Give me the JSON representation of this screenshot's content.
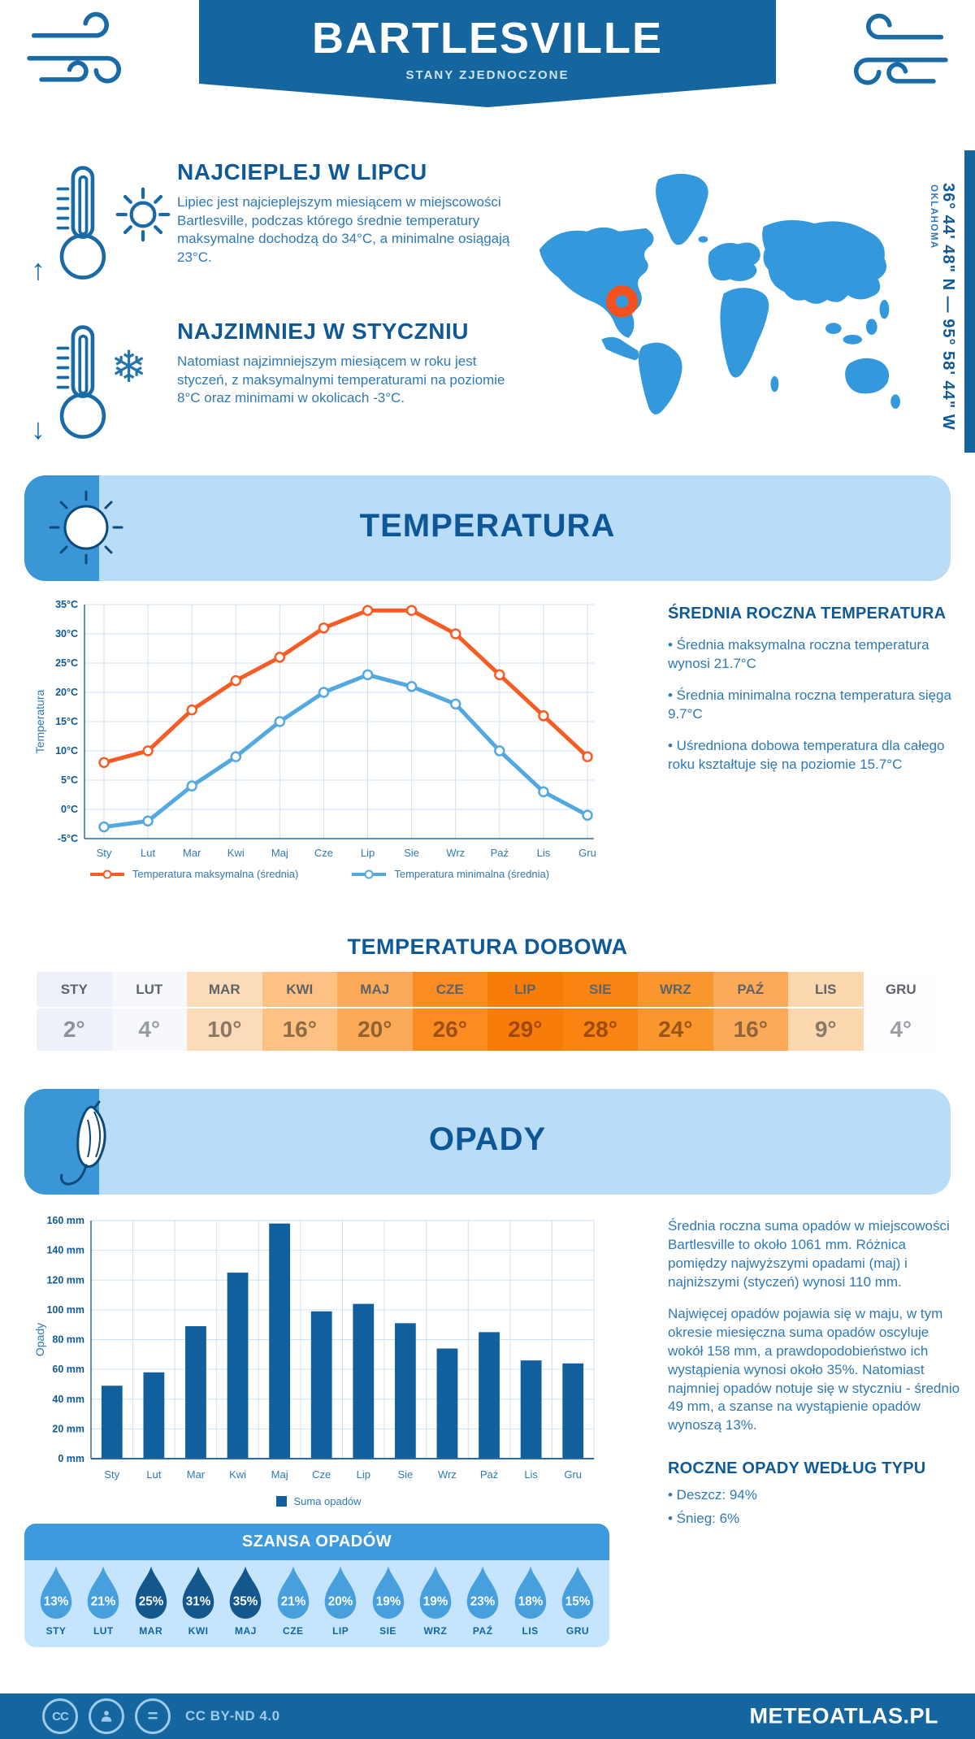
{
  "colors": {
    "header_blue": "#15659f",
    "band_bg": "#b9dcf9",
    "band_accent": "#3b96d7",
    "heading_blue": "#0f5a96",
    "text_blue": "#2e79b5",
    "map_blue": "#3498dc",
    "marker_orange": "#f4511e",
    "bar_blue": "#11609d",
    "droplet_light": "#47a0dd",
    "droplet_dark": "#14578c"
  },
  "header": {
    "title": "BARTLESVILLE",
    "subtitle": "STANY ZJEDNOCZONE"
  },
  "location": {
    "coordinates": "36° 44' 48\" N — 95° 58' 44\" W",
    "region": "OKLAHOMA"
  },
  "highlights": [
    {
      "title": "NAJCIEPLEJ W LIPCU",
      "text": "Lipiec jest najcieplejszym miesiącem w miejscowości Bartlesville, podczas którego średnie temperatury maksymalne dochodzą do 34°C, a minimalne osiągają 23°C."
    },
    {
      "title": "NAJZIMNIEJ W STYCZNIU",
      "text": "Natomiast najzimniejszym miesiącem w roku jest styczeń, z maksymalnymi temperaturami na poziomie 8°C oraz minimami w okolicach -3°C."
    }
  ],
  "temperature_section": {
    "title": "TEMPERATURA",
    "summary_title": "ŚREDNIA ROCZNA TEMPERATURA",
    "summary_points": [
      "• Średnia maksymalna roczna temperatura wynosi 21.7°C",
      "• Średnia minimalna roczna temperatura sięga 9.7°C",
      "• Uśredniona dobowa temperatura dla całego roku kształtuje się na poziomie 15.7°C"
    ],
    "daily_title": "TEMPERATURA DOBOWA",
    "table": {
      "months": [
        "STY",
        "LUT",
        "MAR",
        "KWI",
        "MAJ",
        "CZE",
        "LIP",
        "SIE",
        "WRZ",
        "PAŹ",
        "LIS",
        "GRU"
      ],
      "values": [
        "2°",
        "4°",
        "10°",
        "16°",
        "20°",
        "26°",
        "29°",
        "28°",
        "24°",
        "16°",
        "9°",
        "4°"
      ],
      "bg": [
        "#eef0fa",
        "#f7f8fc",
        "#fcdcb8",
        "#fdc183",
        "#fca958",
        "#fc8c22",
        "#f87d08",
        "#f98411",
        "#fa962e",
        "#fca958",
        "#fbd8b0",
        "#fefeff"
      ],
      "fg": [
        "#8e9199",
        "#989ba1",
        "#8d7863",
        "#8f6c46",
        "#936230",
        "#9d5011",
        "#a24806",
        "#a14a08",
        "#9b5513",
        "#90653b",
        "#8b7b67",
        "#9b9ea4"
      ]
    }
  },
  "precipitation_section": {
    "title": "OPADY",
    "paragraphs": [
      "Średnia roczna suma opadów w miejscowości Bartlesville to około 1061 mm. Różnica pomiędzy najwyższymi opadami (maj) i najniższymi (styczeń) wynosi 110 mm.",
      "Najwięcej opadów pojawia się w maju, w tym okresie miesięczna suma opadów oscyluje wokół 158 mm, a prawdopodobieństwo ich wystąpienia wynosi około 35%. Natomiast najmniej opadów notuje się w styczniu - średnio 49 mm, a szanse na wystąpienie opadów wynoszą 13%."
    ],
    "type_title": "ROCZNE OPADY WEDŁUG TYPU",
    "type_points": [
      "• Deszcz: 94%",
      "• Śnieg: 6%"
    ],
    "legend_label": "Suma opadów",
    "chance": {
      "title": "SZANSA OPADÓW",
      "months": [
        "STY",
        "LUT",
        "MAR",
        "KWI",
        "MAJ",
        "CZE",
        "LIP",
        "SIE",
        "WRZ",
        "PAŹ",
        "LIS",
        "GRU"
      ],
      "values": [
        "13%",
        "21%",
        "25%",
        "31%",
        "35%",
        "21%",
        "20%",
        "19%",
        "19%",
        "23%",
        "18%",
        "15%"
      ],
      "dark": [
        false,
        false,
        true,
        true,
        true,
        false,
        false,
        false,
        false,
        false,
        false,
        false
      ]
    }
  },
  "footer": {
    "license": "CC BY-ND 4.0",
    "brand": "METEOATLAS.PL"
  },
  "chart_data": [
    {
      "type": "line",
      "title": "Temperatura (średnie miesięczne)",
      "categories": [
        "Sty",
        "Lut",
        "Mar",
        "Kwi",
        "Maj",
        "Cze",
        "Lip",
        "Sie",
        "Wrz",
        "Paź",
        "Lis",
        "Gru"
      ],
      "series": [
        {
          "name": "Temperatura maksymalna (średnia)",
          "color": "#f85c25",
          "values": [
            8,
            10,
            17,
            22,
            26,
            31,
            34,
            34,
            30,
            23,
            16,
            9
          ]
        },
        {
          "name": "Temperatura minimalna (średnia)",
          "color": "#54a8e0",
          "values": [
            -3,
            -2,
            4,
            9,
            15,
            20,
            23,
            21,
            18,
            10,
            3,
            -1
          ]
        }
      ],
      "xlabel": "",
      "ylabel": "Temperatura",
      "ylim": [
        -5,
        35
      ],
      "ytick_step": 5,
      "yunit": "°C",
      "grid": true,
      "legend_position": "bottom"
    },
    {
      "type": "bar",
      "title": "Suma opadów (miesięczna)",
      "categories": [
        "Sty",
        "Lut",
        "Mar",
        "Kwi",
        "Maj",
        "Cze",
        "Lip",
        "Sie",
        "Wrz",
        "Paź",
        "Lis",
        "Gru"
      ],
      "values": [
        49,
        58,
        89,
        125,
        158,
        99,
        104,
        91,
        74,
        85,
        66,
        64
      ],
      "xlabel": "",
      "ylabel": "Opady",
      "ylim": [
        0,
        160
      ],
      "ytick_step": 20,
      "yunit": "mm",
      "grid": true,
      "bar_color": "#11609d",
      "legend": "Suma opadów"
    }
  ]
}
